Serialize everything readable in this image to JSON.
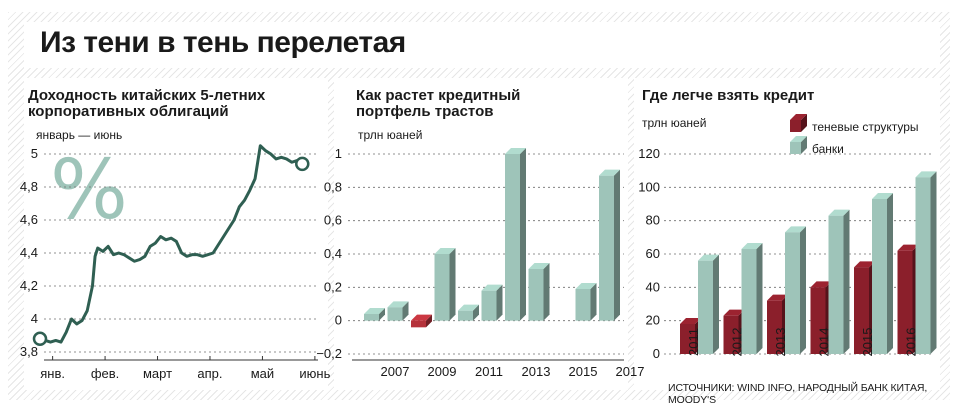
{
  "main_title": "Из тени в тень перелетая",
  "source": "ИСТОЧНИКИ: WIND INFO, НАРОДНЫЙ БАНК КИТАЯ, MOODY'S",
  "chart_data": [
    {
      "type": "line",
      "title_line1": "Доходность китайских 5-летних",
      "title_line2": "корпоративных облигаций",
      "subtitle": "январь — июнь",
      "decoration": "%",
      "y_ticks": [
        "3,8",
        "4",
        "4,2",
        "4,4",
        "4,6",
        "4,8",
        "5"
      ],
      "ylim": [
        3.8,
        5.0
      ],
      "x_ticks": [
        "янв.",
        "фев.",
        "март",
        "апр.",
        "май",
        "июнь"
      ],
      "xlim": [
        0,
        5.3
      ],
      "series": [
        {
          "x": [
            0,
            0.1,
            0.2,
            0.3,
            0.4,
            0.5,
            0.6,
            0.7,
            0.8,
            0.9,
            1.0,
            1.05,
            1.1,
            1.2,
            1.3,
            1.4,
            1.5,
            1.6,
            1.7,
            1.8,
            1.9,
            2.0,
            2.1,
            2.2,
            2.3,
            2.4,
            2.5,
            2.6,
            2.7,
            2.8,
            2.9,
            3.0,
            3.1,
            3.2,
            3.3,
            3.4,
            3.5,
            3.6,
            3.7,
            3.8,
            3.9,
            4.0,
            4.1,
            4.2,
            4.3,
            4.4,
            4.5,
            4.6,
            4.7,
            4.8,
            4.9,
            5.0
          ],
          "y": [
            3.88,
            3.87,
            3.86,
            3.87,
            3.86,
            3.92,
            4.0,
            3.97,
            3.99,
            4.05,
            4.2,
            4.38,
            4.43,
            4.41,
            4.44,
            4.39,
            4.4,
            4.39,
            4.37,
            4.35,
            4.36,
            4.38,
            4.44,
            4.46,
            4.5,
            4.48,
            4.49,
            4.47,
            4.4,
            4.38,
            4.39,
            4.39,
            4.38,
            4.39,
            4.4,
            4.45,
            4.5,
            4.55,
            4.6,
            4.68,
            4.72,
            4.78,
            4.85,
            5.05,
            5.02,
            5.0,
            4.97,
            4.98,
            4.97,
            4.95,
            4.96,
            4.94
          ]
        }
      ]
    },
    {
      "type": "bar",
      "title_line1": "Как растет кредитный",
      "title_line2": "портфель трастов",
      "ylabel": "трлн юаней",
      "y_ticks": [
        "−0,2",
        "0",
        "0,2",
        "0,4",
        "0,6",
        "0,8",
        "1"
      ],
      "ylim": [
        -0.2,
        1.0
      ],
      "x_ticks": [
        "2007",
        "2009",
        "2011",
        "2013",
        "2015",
        "2017"
      ],
      "categories": [
        "2006",
        "2007",
        "2008",
        "2009",
        "2010",
        "2011",
        "2012",
        "2013",
        "2014",
        "2015",
        "2016",
        "2017"
      ],
      "values": [
        0.04,
        0.08,
        -0.04,
        0.4,
        0.06,
        0.18,
        1.0,
        0.31,
        0.0,
        0.19,
        0.87,
        0.0
      ]
    },
    {
      "type": "bar",
      "title_line1": "Где легче взять кредит",
      "ylabel": "трлн юаней",
      "y_ticks": [
        "0",
        "20",
        "40",
        "60",
        "80",
        "100",
        "120"
      ],
      "ylim": [
        0,
        120
      ],
      "categories": [
        "2011",
        "2012",
        "2013",
        "2014",
        "2015",
        "2016"
      ],
      "series": [
        {
          "name": "теневые структуры",
          "values": [
            18,
            23,
            32,
            40,
            52,
            62
          ],
          "color": "#8b1f2b"
        },
        {
          "name": "банки",
          "values": [
            56,
            63,
            73,
            83,
            93,
            106
          ],
          "color": "#9ec4b9"
        }
      ]
    }
  ]
}
